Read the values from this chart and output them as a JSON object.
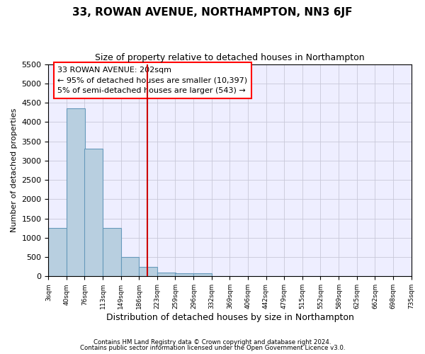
{
  "title": "33, ROWAN AVENUE, NORTHAMPTON, NN3 6JF",
  "subtitle": "Size of property relative to detached houses in Northampton",
  "xlabel": "Distribution of detached houses by size in Northampton",
  "ylabel": "Number of detached properties",
  "footer1": "Contains HM Land Registry data © Crown copyright and database right 2024.",
  "footer2": "Contains public sector information licensed under the Open Government Licence v3.0.",
  "annotation_title": "33 ROWAN AVENUE: 202sqm",
  "annotation_line1": "← 95% of detached houses are smaller (10,397)",
  "annotation_line2": "5% of semi-detached houses are larger (543) →",
  "bin_starts": [
    3,
    40,
    76,
    113,
    149,
    186,
    223,
    259,
    296,
    332,
    369,
    406,
    442,
    479,
    515,
    552,
    589,
    625,
    662,
    698
  ],
  "bin_width": 37,
  "bar_values": [
    1260,
    4350,
    3300,
    1260,
    500,
    250,
    100,
    75,
    75,
    0,
    0,
    0,
    0,
    0,
    0,
    0,
    0,
    0,
    0,
    0
  ],
  "bar_color": "#b8cfe0",
  "bar_edge_color": "#6699bb",
  "grid_color": "#c8c8d8",
  "background_color": "#eeeeff",
  "vline_color": "#cc0000",
  "vline_x": 202,
  "ylim": [
    0,
    5500
  ],
  "xlim": [
    3,
    735
  ],
  "yticks": [
    0,
    500,
    1000,
    1500,
    2000,
    2500,
    3000,
    3500,
    4000,
    4500,
    5000,
    5500
  ],
  "xtick_labels": [
    "3sqm",
    "40sqm",
    "76sqm",
    "113sqm",
    "149sqm",
    "186sqm",
    "223sqm",
    "259sqm",
    "296sqm",
    "332sqm",
    "369sqm",
    "406sqm",
    "442sqm",
    "479sqm",
    "515sqm",
    "552sqm",
    "589sqm",
    "625sqm",
    "662sqm",
    "698sqm",
    "735sqm"
  ],
  "xtick_positions": [
    3,
    40,
    76,
    113,
    149,
    186,
    223,
    259,
    296,
    332,
    369,
    406,
    442,
    479,
    515,
    552,
    589,
    625,
    662,
    698,
    735
  ]
}
